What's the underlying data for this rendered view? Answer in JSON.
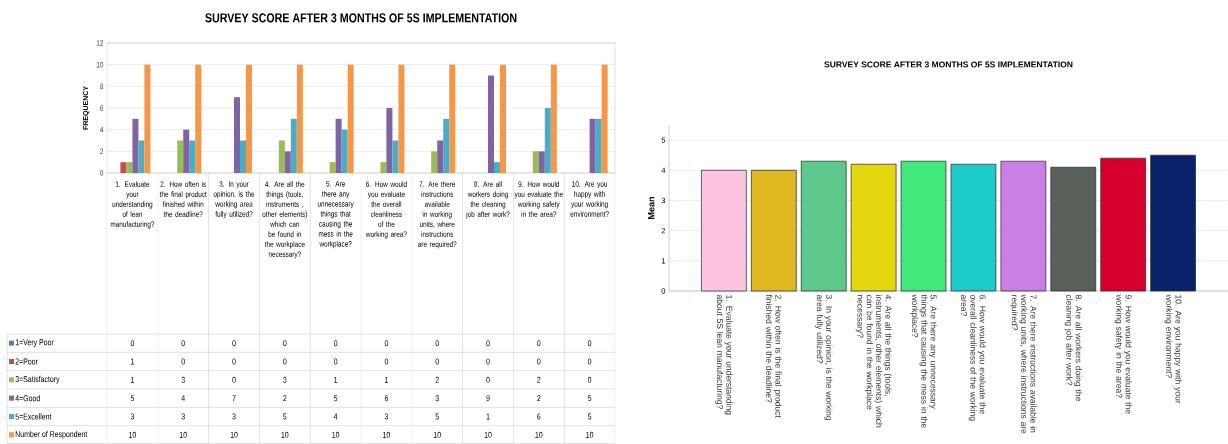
{
  "chart_data": [
    {
      "type": "bar",
      "title": "SURVEY SCORE AFTER 3 MONTHS OF 5S IMPLEMENTATION",
      "ylabel": "FREQUENCY",
      "categories": [
        "1. Evaluate your understanding of lean manufacturing?",
        "2. How often is the final product finished within the deadline?",
        "3. In your opinion, is the working area fully utilized?",
        "4. Are all the things (tools, instruments , other elements) which can be found in the workplace necessary?",
        "5. Are there any unnecessary things that causing the mess in the workplace?",
        "6. How would you evaluate the overall cleanliness of the working area?",
        "7. Are there instructions available in working units, where instructions are required?",
        "8. Are all workers doing the cleaning job after work?",
        "9. How would you evaluate the working safety in the area?",
        "10. Are you happy with your working environment?"
      ],
      "series": [
        {
          "name": "1=Very Poor",
          "color": "#4f81bd",
          "values": [
            0,
            0,
            0,
            0,
            0,
            0,
            0,
            0,
            0,
            0
          ]
        },
        {
          "name": "2=Poor",
          "color": "#c0504d",
          "values": [
            1,
            0,
            0,
            0,
            0,
            0,
            0,
            0,
            0,
            0
          ]
        },
        {
          "name": "3=Satisfactory",
          "color": "#9bbb59",
          "values": [
            1,
            3,
            0,
            3,
            1,
            1,
            2,
            0,
            2,
            0
          ]
        },
        {
          "name": "4=Good",
          "color": "#8064a2",
          "values": [
            5,
            4,
            7,
            2,
            5,
            6,
            3,
            9,
            2,
            5
          ]
        },
        {
          "name": "5=Excellent",
          "color": "#4bacc6",
          "values": [
            3,
            3,
            3,
            5,
            4,
            3,
            5,
            1,
            6,
            5
          ]
        },
        {
          "name": "Number of Respondent",
          "color": "#f79646",
          "values": [
            10,
            10,
            10,
            10,
            10,
            10,
            10,
            10,
            10,
            10
          ]
        }
      ],
      "ylim": [
        0,
        12
      ],
      "yticks": [
        0,
        2,
        4,
        6,
        8,
        10,
        12
      ],
      "grid": "y",
      "legend": "bottom",
      "data_labels": true
    },
    {
      "type": "bar",
      "title": "SURVEY SCORE AFTER 3 MONTHS OF 5S IMPLEMENTATION",
      "ylabel": "Mean",
      "categories": [
        "1. Evaluate your understanding about 5S lean manufacturing?",
        "2. How often is the final product finished within the deadline?",
        "3. In your opinion, is the working area fully utilized?",
        "4. Are all the things (tools, instruments, other elements) which can be found in the workplace necessary?",
        "5. Are there any unnecessary things that causing the mess in the workplace?",
        "6. How would you evaluate the overall cleanliness of the working area?",
        "7. Are there instructions available in working units, where instructions are required?",
        "8. Are all workers doing the cleaning job after work?",
        "9. How would you evaluate the working safety in the area?",
        "10. Are you happy with your working environment?"
      ],
      "values": [
        4.0,
        4.0,
        4.3,
        4.2,
        4.3,
        4.2,
        4.3,
        4.1,
        4.4,
        4.5
      ],
      "colors": [
        "#fcc4e0",
        "#e0b820",
        "#5ec98a",
        "#e3d70f",
        "#42e87c",
        "#1ecbcb",
        "#c97fe3",
        "#586059",
        "#d6002f",
        "#0b226b"
      ],
      "ylim": [
        0,
        5.5
      ],
      "yticks": [
        0,
        1,
        2,
        3,
        4,
        5
      ],
      "grid": "y"
    }
  ]
}
